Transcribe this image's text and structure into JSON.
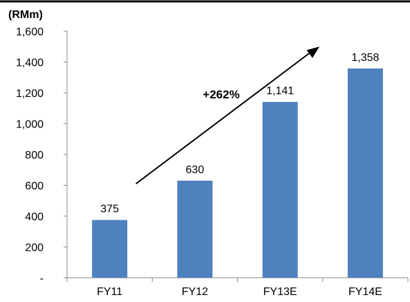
{
  "chart_data": {
    "type": "bar",
    "unit_label": "(RMm)",
    "categories": [
      "FY11",
      "FY12",
      "FY13E",
      "FY14E"
    ],
    "values": [
      375,
      630,
      1141,
      1358
    ],
    "data_labels": [
      "375",
      "630",
      "1,141",
      "1,358"
    ],
    "ylim": [
      0,
      1600
    ],
    "y_ticks": [
      0,
      200,
      400,
      600,
      800,
      1000,
      1200,
      1400,
      1600
    ],
    "y_tick_labels": [
      "-",
      "200",
      "400",
      "600",
      "800",
      "1,000",
      "1,200",
      "1,400",
      "1,600"
    ],
    "annotation": {
      "text": "+262%",
      "arrow_from": {
        "category": "FY11",
        "value": 610
      },
      "arrow_to": {
        "category": "FY13E",
        "value": 1500
      }
    },
    "grid": false,
    "legend": "none",
    "bar_color": "#4F81BD"
  }
}
